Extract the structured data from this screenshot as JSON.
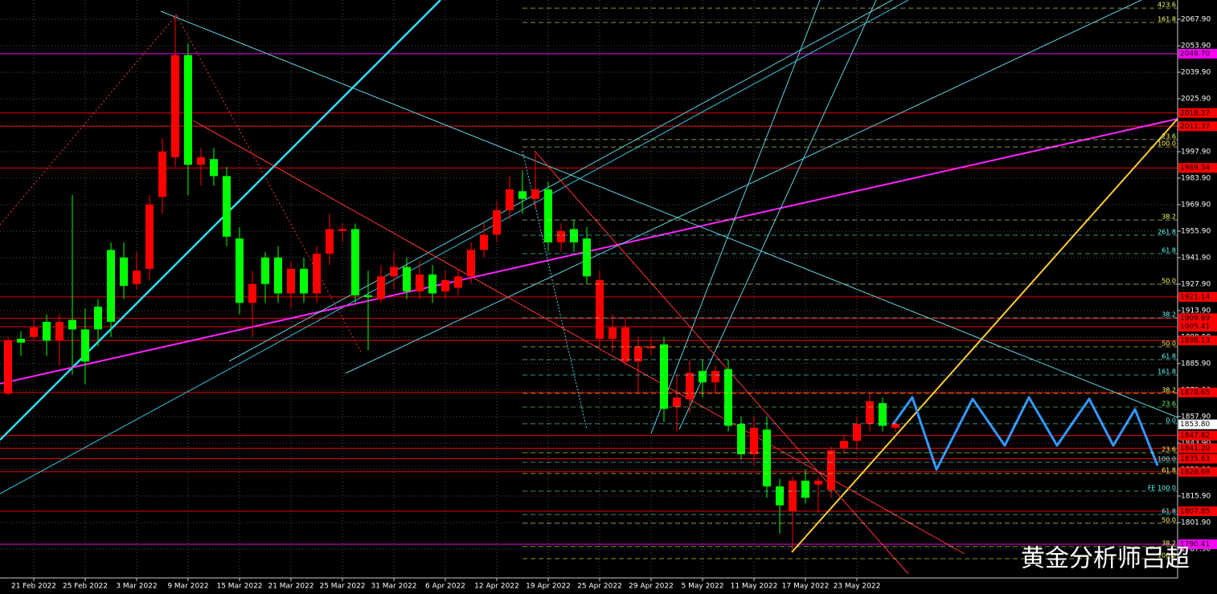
{
  "chart_data": {
    "type": "candlestick",
    "up_color": "#ff0000",
    "down_color": "#00ff00",
    "grid": true,
    "ylim": [
      1772.6,
      2078.1
    ],
    "yticks": [
      {
        "value": 2067.9,
        "label": "2067.90"
      },
      {
        "value": 2053.9,
        "label": "2053.90"
      },
      {
        "value": 2039.9,
        "label": "2039.90"
      },
      {
        "value": 2025.9,
        "label": "2025.90"
      },
      {
        "value": 2011.9,
        "label": "2011.90"
      },
      {
        "value": 1997.9,
        "label": "1997.90"
      },
      {
        "value": 1983.9,
        "label": "1983.90"
      },
      {
        "value": 1969.9,
        "label": "1969.90"
      },
      {
        "value": 1955.9,
        "label": "1955.90"
      },
      {
        "value": 1941.9,
        "label": "1941.90"
      },
      {
        "value": 1927.9,
        "label": "1927.90"
      },
      {
        "value": 1913.9,
        "label": "1913.90"
      },
      {
        "value": 1899.9,
        "label": "1899.90"
      },
      {
        "value": 1885.9,
        "label": "1885.90"
      },
      {
        "value": 1871.9,
        "label": "1871.90"
      },
      {
        "value": 1857.9,
        "label": "1857.90"
      },
      {
        "value": 1843.9,
        "label": "1843.90"
      },
      {
        "value": 1829.9,
        "label": "1829.90"
      },
      {
        "value": 1815.9,
        "label": "1815.90"
      },
      {
        "value": 1801.9,
        "label": "1801.90"
      },
      {
        "value": 1787.9,
        "label": "1787.90"
      }
    ],
    "categories": [
      null,
      null,
      "21 Feb 2022",
      null,
      null,
      null,
      "25 Feb 2022",
      null,
      null,
      null,
      "3 Mar 2022",
      null,
      null,
      null,
      "9 Mar 2022",
      null,
      null,
      null,
      "15 Mar 2022",
      null,
      null,
      null,
      "21 Mar 2022",
      null,
      null,
      null,
      "25 Mar 2022",
      null,
      null,
      null,
      "31 Mar 2022",
      null,
      null,
      null,
      "6 Apr 2022",
      null,
      null,
      null,
      "12 Apr 2022",
      null,
      null,
      null,
      "19 Apr 2022",
      null,
      null,
      null,
      "25 Apr 2022",
      null,
      null,
      null,
      "29 Apr 2022",
      null,
      null,
      null,
      "5 May 2022",
      null,
      null,
      null,
      "11 May 2022",
      null,
      null,
      null,
      "17 May 2022",
      null,
      null,
      null,
      "23 May 2022",
      null,
      null,
      null
    ],
    "open": [
      1870,
      1899,
      1900,
      1908,
      1898,
      1909,
      1904,
      1916,
      1946,
      1942,
      1928,
      1936,
      1974,
      1995,
      2049,
      1991,
      1994,
      1985,
      1952,
      1918,
      1942,
      1942,
      1923,
      1936,
      1923,
      1944,
      1956,
      1957,
      1922,
      1920,
      1932,
      1937,
      1924,
      1933,
      1924,
      1926,
      1932,
      1946,
      1954,
      1967,
      1977,
      1973,
      1978,
      1950,
      1957,
      1952,
      1899,
      1899,
      1887,
      1887,
      1894,
      1896,
      1863,
      1867,
      1882,
      1876,
      1883,
      1854,
      1838,
      1851,
      1821,
      1808,
      1824,
      1822,
      1819,
      1841,
      1845,
      1854,
      1865,
      1852
    ],
    "high": [
      1900,
      1903,
      1910,
      1912,
      1912,
      1975,
      1915,
      1920,
      1950,
      1950,
      1945,
      1975,
      2005,
      2070,
      2055,
      2000,
      2000,
      1990,
      1958,
      1935,
      1945,
      1948,
      1940,
      1942,
      1948,
      1965,
      1960,
      1960,
      1935,
      1938,
      1945,
      1942,
      1940,
      1938,
      1935,
      1936,
      1950,
      1960,
      1972,
      1985,
      1988,
      1997,
      1982,
      1960,
      1962,
      1958,
      1935,
      1912,
      1910,
      1900,
      1900,
      1900,
      1880,
      1888,
      1888,
      1885,
      1888,
      1858,
      1858,
      1858,
      1825,
      1826,
      1830,
      1826,
      1842,
      1848,
      1858,
      1870,
      1868,
      1856
    ],
    "low": [
      1869,
      1890,
      1898,
      1890,
      1885,
      1880,
      1875,
      1895,
      1900,
      1920,
      1925,
      1930,
      1965,
      1990,
      1975,
      1980,
      1980,
      1948,
      1912,
      1900,
      1918,
      1918,
      1915,
      1918,
      1918,
      1938,
      1950,
      1918,
      1893,
      1918,
      1925,
      1920,
      1920,
      1918,
      1920,
      1922,
      1928,
      1942,
      1950,
      1962,
      1965,
      1968,
      1945,
      1945,
      1945,
      1928,
      1895,
      1892,
      1885,
      1870,
      1890,
      1855,
      1850,
      1860,
      1868,
      1870,
      1850,
      1835,
      1832,
      1815,
      1796,
      1787,
      1812,
      1807,
      1815,
      1838,
      1840,
      1850,
      1850,
      1850
    ],
    "close": [
      1898,
      1897,
      1905,
      1898,
      1908,
      1904,
      1887,
      1904,
      1908,
      1927,
      1935,
      1970,
      1998,
      2049,
      1991,
      1995,
      1985,
      1953,
      1918,
      1928,
      1928,
      1923,
      1936,
      1923,
      1944,
      1957,
      1957,
      1922,
      1921,
      1932,
      1937,
      1924,
      1933,
      1923,
      1930,
      1932,
      1946,
      1954,
      1967,
      1978,
      1973,
      1978,
      1950,
      1956,
      1950,
      1932,
      1930,
      1905,
      1905,
      1895,
      1895,
      1862,
      1868,
      1881,
      1876,
      1882,
      1853,
      1838,
      1852,
      1821,
      1811,
      1824,
      1815,
      1824,
      1840,
      1845,
      1854,
      1866,
      1853,
      1854
    ],
    "levels": [
      {
        "value": 2049.7,
        "label": "2049.70",
        "color": "#ff00ff"
      },
      {
        "value": 2018.37,
        "label": "2018.37",
        "color": "#ff0000"
      },
      {
        "value": 2011.37,
        "label": "2011.37",
        "color": "#ff0000"
      },
      {
        "value": 1989.34,
        "label": "1989.34",
        "color": "#ff0000"
      },
      {
        "value": 1921.14,
        "label": "1921.14",
        "color": "#ff0000"
      },
      {
        "value": 1909.89,
        "label": "1909.89",
        "color": "#ff0000"
      },
      {
        "value": 1905.41,
        "label": "1905.41",
        "color": "#ff0000"
      },
      {
        "value": 1898.13,
        "label": "1898.13",
        "color": "#ff0000"
      },
      {
        "value": 1870.65,
        "label": "1870.65",
        "color": "#ff0000"
      },
      {
        "value": 1853.8,
        "label": "1853.80",
        "color": "#ffffff"
      },
      {
        "value": 1847.82,
        "label": "1847.82",
        "color": "#ff0000"
      },
      {
        "value": 1841.2,
        "label": "1841.20",
        "color": "#ff0000"
      },
      {
        "value": 1835.63,
        "label": "1835.63",
        "color": "#ff0000"
      },
      {
        "value": 1828.69,
        "label": "1828.69",
        "color": "#ff0000"
      },
      {
        "value": 1807.85,
        "label": "1807.85",
        "color": "#ff0000"
      },
      {
        "value": 1790.41,
        "label": "1790.41",
        "color": "#ff00ff"
      }
    ],
    "fib_labels": [
      {
        "text": "423.6",
        "price": 2073.8,
        "color": "#ffff66"
      },
      {
        "text": "161.8",
        "price": 2066.2,
        "color": "#ffff66"
      },
      {
        "text": "23.6",
        "price": 2004.3,
        "color": "#ffff66"
      },
      {
        "text": "100.0",
        "price": 2000.4,
        "color": "#ffff66"
      },
      {
        "text": "38.2",
        "price": 1961.8,
        "color": "#ffff66"
      },
      {
        "text": "261.8",
        "price": 1953.8,
        "color": "#66ffff"
      },
      {
        "text": "61.8",
        "price": 1944.0,
        "color": "#66ffff"
      },
      {
        "text": "50.0",
        "price": 1927.9,
        "color": "#ffff66"
      },
      {
        "text": "38.2",
        "price": 1910.1,
        "color": "#66ffff"
      },
      {
        "text": "50.0",
        "price": 1894.8,
        "color": "#ffff66"
      },
      {
        "text": "61.8",
        "price": 1888.0,
        "color": "#66ffff"
      },
      {
        "text": "161.8",
        "price": 1879.9,
        "color": "#66ffff"
      },
      {
        "text": "38.2",
        "price": 1870.2,
        "color": "#ffff66"
      },
      {
        "text": "23.6",
        "price": 1863.0,
        "color": "#66ff66"
      },
      {
        "text": "0.0",
        "price": 1854.1,
        "color": "#66ffff"
      },
      {
        "text": "23.6",
        "price": 1838.8,
        "color": "#ffff66"
      },
      {
        "text": "100.0",
        "price": 1833.7,
        "color": "#66ffff"
      },
      {
        "text": "61.8",
        "price": 1827.8,
        "color": "#ffff66"
      },
      {
        "text": "FE 100.0",
        "price": 1818.5,
        "color": "#66ffff"
      },
      {
        "text": "61.8",
        "price": 1806.1,
        "color": "#66ffff"
      },
      {
        "text": "50.0",
        "price": 1801.5,
        "color": "#ffff66"
      },
      {
        "text": "38.2",
        "price": 1789.2,
        "color": "#ffff66"
      },
      {
        "text": "100.0",
        "price": 1782.8,
        "color": "#ffff66"
      }
    ],
    "watermark": "黄金分析师吕超"
  }
}
